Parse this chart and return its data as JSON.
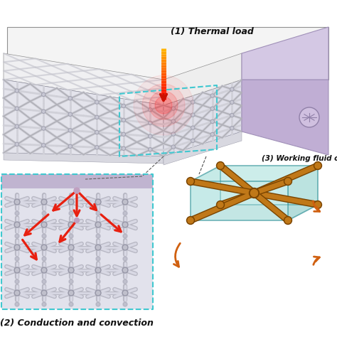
{
  "bg_color": "#ffffff",
  "label1": "(1) Thermal load",
  "label2": "(2) Conduction and convection",
  "label3": "(3) Working fluid o",
  "lattice_silver": "#c8c8d0",
  "lattice_dark": "#9090a0",
  "lattice_shadow": "#7878888",
  "purple_face": "#c0aed4",
  "purple_top": "#d4c8e4",
  "purple_edge": "#a090b8",
  "cyan_border": "#40c8d0",
  "bar_color": "#c07818",
  "bar_dark": "#7a4400",
  "arrow_red": "#e82010",
  "arrow_orange": "#d06010",
  "thermal_orange": "#e08010",
  "thermal_red": "#cc1000",
  "glow_red": "#ff2020",
  "white_top": "#f4f4f4",
  "white_edge": "#909090",
  "grey_panel": "#e8e8ec"
}
